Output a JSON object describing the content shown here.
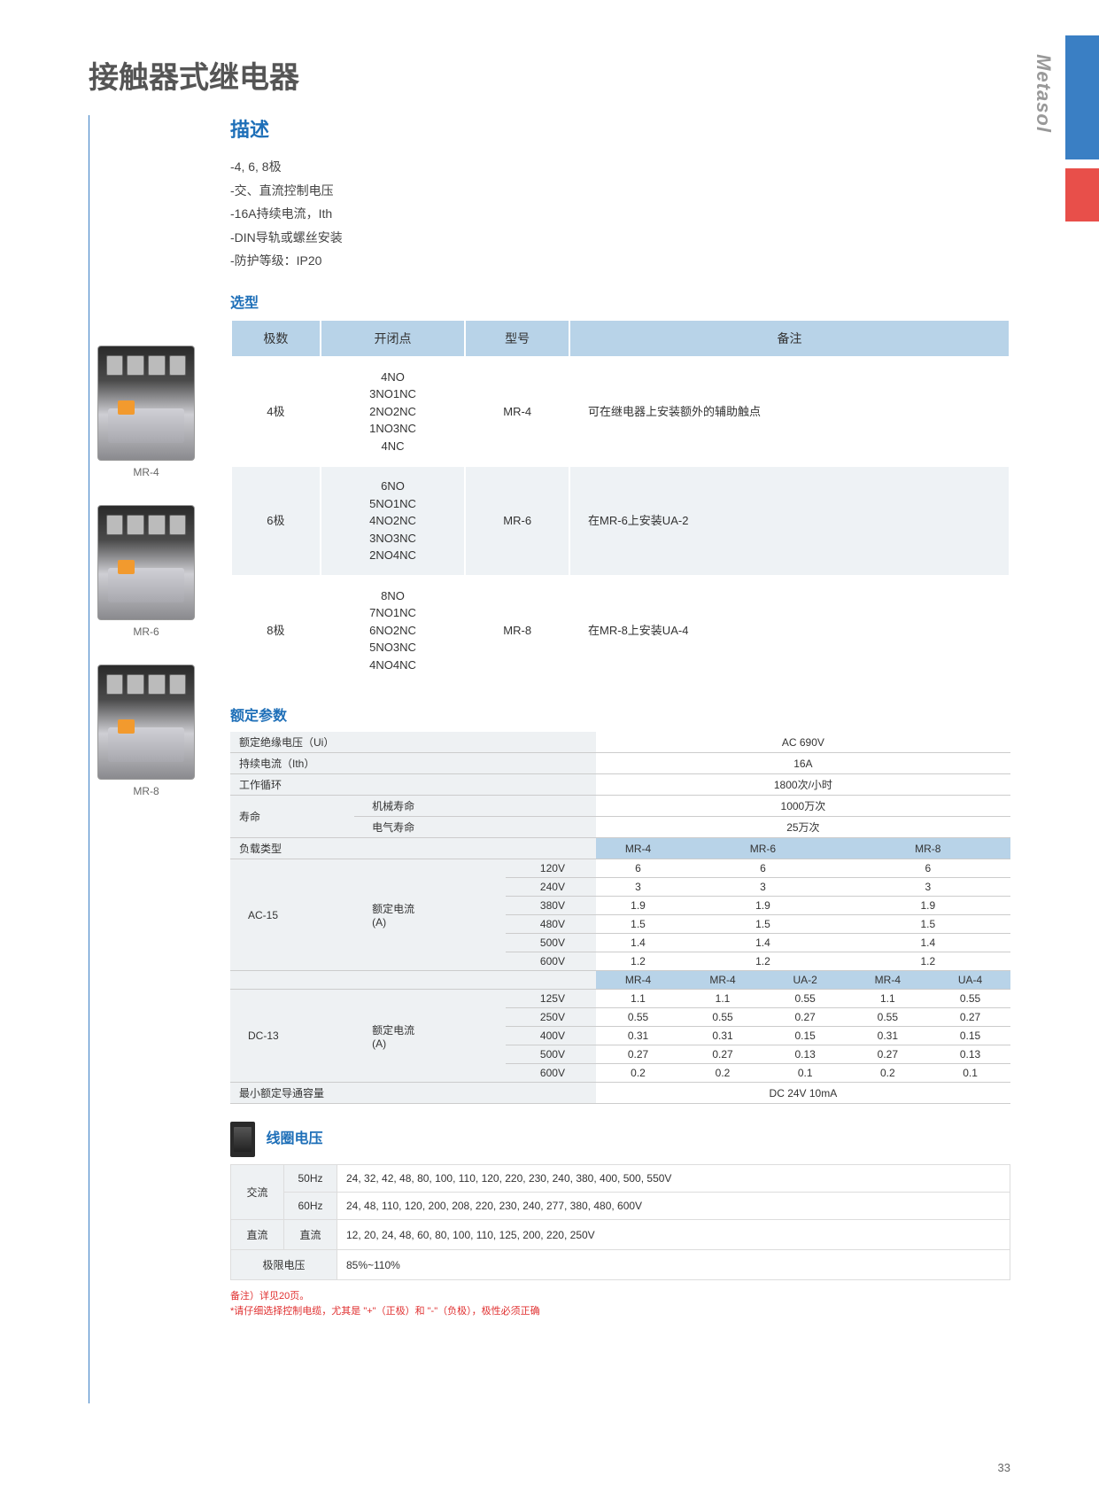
{
  "brand": "Metasol",
  "page_title": "接触器式继电器",
  "page_number": "33",
  "section_desc": {
    "heading": "描述",
    "items": [
      "-4, 6, 8极",
      "-交、直流控制电压",
      "-16A持续电流，Ith",
      "-DIN导轨或螺丝安装",
      "-防护等级：IP20"
    ]
  },
  "selection": {
    "heading": "选型",
    "headers": [
      "极数",
      "开闭点",
      "型号",
      "备注"
    ],
    "rows": [
      {
        "poles": "4极",
        "contacts": "4NO\n3NO1NC\n2NO2NC\n1NO3NC\n4NC",
        "model": "MR-4",
        "note": "可在继电器上安装额外的辅助触点"
      },
      {
        "poles": "6极",
        "contacts": "6NO\n5NO1NC\n4NO2NC\n3NO3NC\n2NO4NC",
        "model": "MR-6",
        "note": "在MR-6上安装UA-2"
      },
      {
        "poles": "8极",
        "contacts": "8NO\n7NO1NC\n6NO2NC\n5NO3NC\n4NO4NC",
        "model": "MR-8",
        "note": "在MR-8上安装UA-4"
      }
    ]
  },
  "product_images": [
    {
      "label": "MR-4"
    },
    {
      "label": "MR-6"
    },
    {
      "label": "MR-8"
    }
  ],
  "ratings": {
    "heading": "额定参数",
    "simple": [
      {
        "label": "额定绝缘电压（Ui）",
        "value": "AC 690V"
      },
      {
        "label": "持续电流（Ith）",
        "value": "16A"
      },
      {
        "label": "工作循环",
        "value": "1800次/小时"
      }
    ],
    "life": {
      "label": "寿命",
      "rows": [
        {
          "sub": "机械寿命",
          "value": "1000万次"
        },
        {
          "sub": "电气寿命",
          "value": "25万次"
        }
      ]
    },
    "load_label": "负载类型",
    "ac15": {
      "label": "AC-15",
      "sub": "额定电流\n(A)",
      "headers": [
        "MR-4",
        "MR-6",
        "MR-8"
      ],
      "rows": [
        {
          "v": "120V",
          "vals": [
            "6",
            "6",
            "6"
          ]
        },
        {
          "v": "240V",
          "vals": [
            "3",
            "3",
            "3"
          ]
        },
        {
          "v": "380V",
          "vals": [
            "1.9",
            "1.9",
            "1.9"
          ]
        },
        {
          "v": "480V",
          "vals": [
            "1.5",
            "1.5",
            "1.5"
          ]
        },
        {
          "v": "500V",
          "vals": [
            "1.4",
            "1.4",
            "1.4"
          ]
        },
        {
          "v": "600V",
          "vals": [
            "1.2",
            "1.2",
            "1.2"
          ]
        }
      ]
    },
    "dc13": {
      "label": "DC-13",
      "sub": "额定电流\n(A)",
      "headers": [
        "MR-4",
        "MR-4",
        "UA-2",
        "MR-4",
        "UA-4"
      ],
      "rows": [
        {
          "v": "125V",
          "vals": [
            "1.1",
            "1.1",
            "0.55",
            "1.1",
            "0.55"
          ]
        },
        {
          "v": "250V",
          "vals": [
            "0.55",
            "0.55",
            "0.27",
            "0.55",
            "0.27"
          ]
        },
        {
          "v": "400V",
          "vals": [
            "0.31",
            "0.31",
            "0.15",
            "0.31",
            "0.15"
          ]
        },
        {
          "v": "500V",
          "vals": [
            "0.27",
            "0.27",
            "0.13",
            "0.27",
            "0.13"
          ]
        },
        {
          "v": "600V",
          "vals": [
            "0.2",
            "0.2",
            "0.1",
            "0.2",
            "0.1"
          ]
        }
      ]
    },
    "min_capacity": {
      "label": "最小额定导通容量",
      "value": "DC 24V 10mA"
    }
  },
  "coil_voltage": {
    "heading": "线圈电压",
    "rows": [
      {
        "cat": "交流",
        "sub": "50Hz",
        "value": "24, 32, 42, 48, 80, 100, 110, 120, 220, 230, 240, 380, 400, 500, 550V"
      },
      {
        "cat": "",
        "sub": "60Hz",
        "value": "24, 48, 110, 120, 200, 208, 220, 230, 240, 277, 380, 480, 600V"
      },
      {
        "cat": "直流",
        "sub": "直流",
        "value": "12, 20, 24, 48, 60, 80, 100, 110, 125, 200, 220, 250V"
      },
      {
        "cat": "极限电压",
        "sub": "",
        "value": "85%~110%"
      }
    ]
  },
  "footnotes": [
    "备注）详见20页。",
    "*请仔细选择控制电缆，尤其是 \"+\"（正极）和 \"-\"（负极），极性必须正确"
  ]
}
